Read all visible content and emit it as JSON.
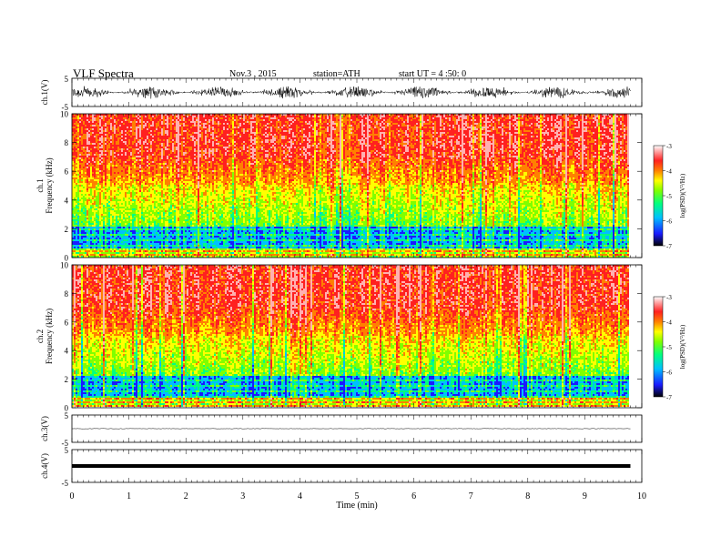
{
  "header": {
    "title": "VLF Spectra",
    "date": "Nov.3 , 2015",
    "station": "station=ATH",
    "start": "start UT = 4 :50: 0"
  },
  "colors": {
    "colormap": [
      "#000000",
      "#1a1aff",
      "#00c0ff",
      "#00ff80",
      "#80ff00",
      "#ffff00",
      "#ff8000",
      "#ff2020",
      "#ffb0b0",
      "#ffffff"
    ],
    "waveform": "#000000",
    "axes": "#000000"
  },
  "chart_data": [
    {
      "type": "line",
      "panel": "ch1-waveform",
      "ylabel": "ch.1(V)",
      "ylim": [
        -5,
        5
      ],
      "ytick_labels": [
        "-5",
        "5"
      ],
      "xlim": [
        0,
        10
      ],
      "description_values": "noisy signal, amplitude about ±2 V"
    },
    {
      "type": "heatmap",
      "panel": "ch1-spectrogram",
      "ylabel": "ch.1\nFrequency (kHz)",
      "ylim": [
        0,
        10
      ],
      "ytick_labels": [
        "0",
        "2",
        "4",
        "6",
        "8",
        "10"
      ],
      "colorbar": {
        "label": "log(PSD)(V²/Hz)",
        "range": [
          -7,
          -3
        ],
        "tick_labels": [
          "-3",
          "-4",
          "-5",
          "-6",
          "-7"
        ]
      }
    },
    {
      "type": "heatmap",
      "panel": "ch2-spectrogram",
      "ylabel": "ch.2\nFrequency (kHz)",
      "ylim": [
        0,
        10
      ],
      "ytick_labels": [
        "0",
        "2",
        "4",
        "6",
        "8",
        "10"
      ],
      "colorbar": {
        "label": "log(PSD)(V²/Hz)",
        "range": [
          -7,
          -3
        ],
        "tick_labels": [
          "-3",
          "-4",
          "-5",
          "-6",
          "-7"
        ]
      }
    },
    {
      "type": "line",
      "panel": "ch3-waveform",
      "ylabel": "ch.3(V)",
      "ylim": [
        -5,
        5
      ],
      "ytick_labels": [
        "-5",
        "5"
      ],
      "values_note": "flat near 0 V"
    },
    {
      "type": "line",
      "panel": "ch4-waveform",
      "ylabel": "ch.4(V)",
      "ylim": [
        -5,
        5
      ],
      "ytick_labels": [
        "-5",
        "5"
      ],
      "values_note": "constant thick line at about 0 V"
    }
  ],
  "xaxis": {
    "label": "Time (min)",
    "range": [
      0,
      10
    ],
    "tick_labels": [
      "0",
      "1",
      "2",
      "3",
      "4",
      "5",
      "6",
      "7",
      "8",
      "9",
      "10"
    ],
    "data_end": 9.8
  }
}
